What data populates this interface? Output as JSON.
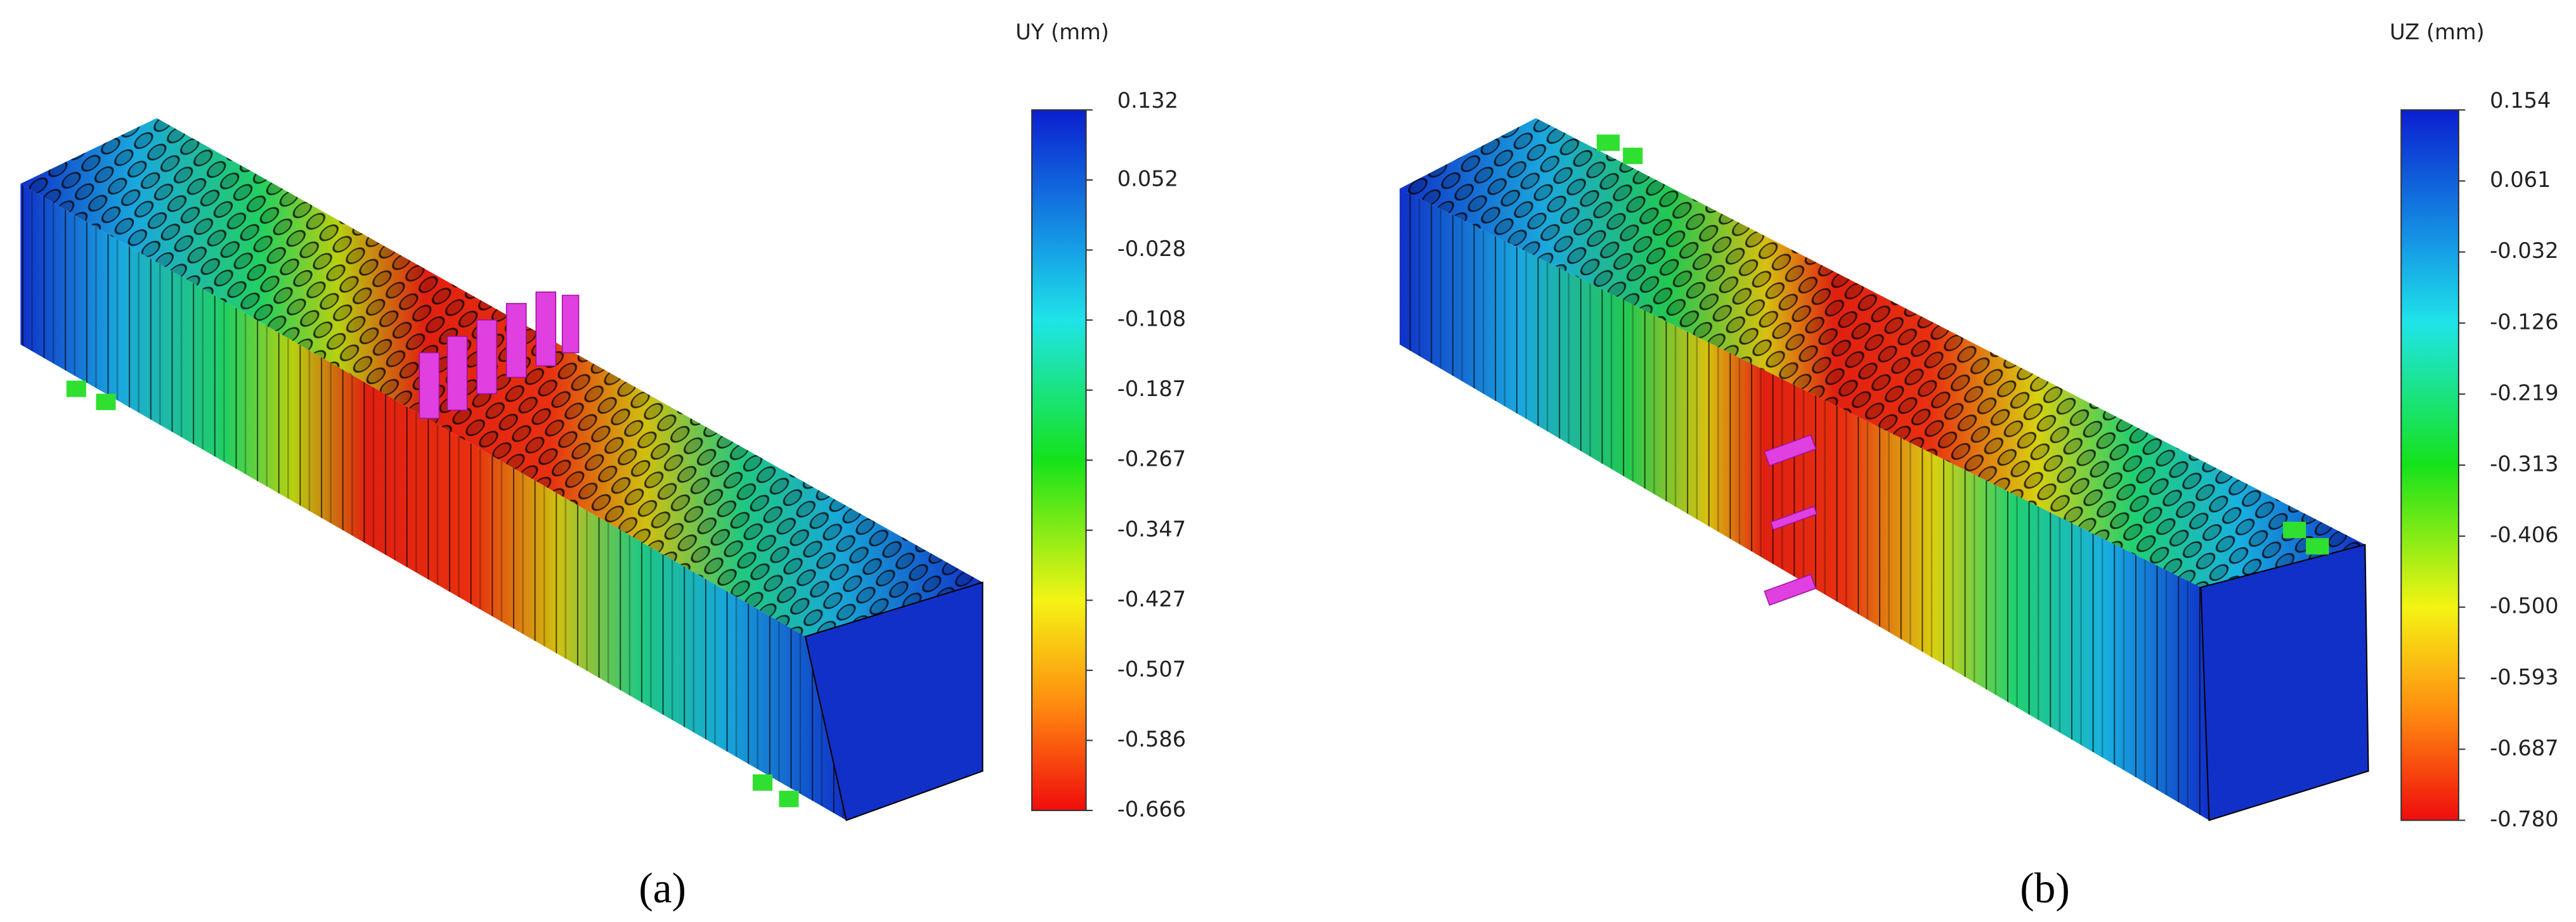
{
  "panels": [
    {
      "caption": "(a)",
      "colorbar": {
        "title": "UY (mm)",
        "ticks": [
          "0.132",
          "0.052",
          "-0.028",
          "-0.108",
          "-0.187",
          "-0.267",
          "-0.347",
          "-0.427",
          "-0.507",
          "-0.586",
          "-0.666"
        ]
      }
    },
    {
      "caption": "(b)",
      "colorbar": {
        "title": "UZ (mm)",
        "ticks": [
          "0.154",
          "0.061",
          "-0.032",
          "-0.126",
          "-0.219",
          "-0.313",
          "-0.406",
          "-0.500",
          "-0.593",
          "-0.687",
          "-0.780"
        ]
      }
    }
  ]
}
